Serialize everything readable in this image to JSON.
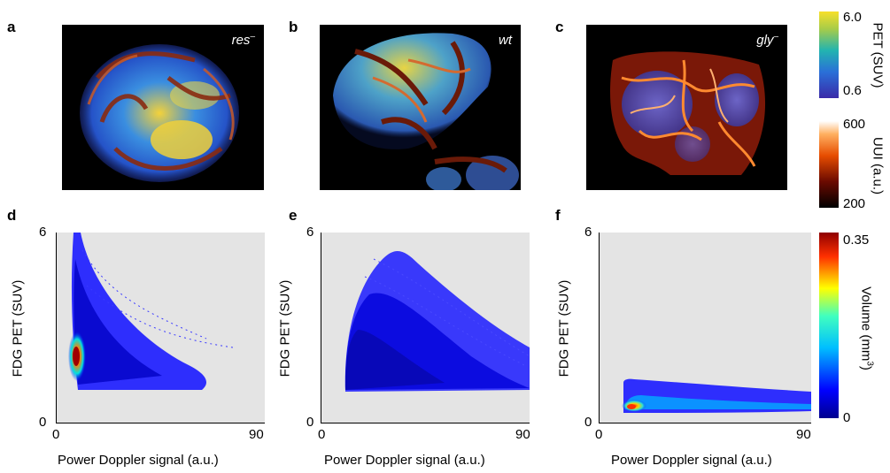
{
  "panels": {
    "a": {
      "letter": "a",
      "tag_main": "res",
      "tag_sup": "–"
    },
    "b": {
      "letter": "b",
      "tag_main": "wt",
      "tag_sup": ""
    },
    "c": {
      "letter": "c",
      "tag_main": "gly",
      "tag_sup": "–"
    },
    "d": {
      "letter": "d"
    },
    "e": {
      "letter": "e"
    },
    "f": {
      "letter": "f"
    }
  },
  "colorbars": {
    "pet": {
      "label": "PET (SUV)",
      "max": "6.0",
      "min": "0.6"
    },
    "uui": {
      "label": "UUI (a.u.)",
      "max": "600",
      "min": "200"
    },
    "volume": {
      "label_main": "Volume (mm",
      "label_sup": "3",
      "label_end": ")",
      "max": "0.35",
      "min": "0"
    }
  },
  "axes": {
    "xlabel": "Power Doppler signal (a.u.)",
    "ylabel": "FDG PET (SUV)",
    "x_min": "0",
    "x_max": "90",
    "y_min": "0",
    "y_max": "6"
  },
  "chart_data": [
    {
      "type": "heatmap",
      "panel": "d",
      "xlabel": "Power Doppler signal (a.u.)",
      "ylabel": "FDG PET (SUV)",
      "xlim": [
        0,
        90
      ],
      "ylim": [
        0,
        6
      ],
      "colorbar": [
        0,
        0.35
      ],
      "hotspot": {
        "x": 8,
        "y": 2.1
      },
      "extent": {
        "x": [
          7,
          50
        ],
        "y": [
          1.6,
          6
        ]
      }
    },
    {
      "type": "heatmap",
      "panel": "e",
      "xlabel": "Power Doppler signal (a.u.)",
      "ylabel": "FDG PET (SUV)",
      "xlim": [
        0,
        90
      ],
      "ylim": [
        0,
        6
      ],
      "colorbar": [
        0,
        0.35
      ],
      "hotspot": {
        "x": 12,
        "y": 2.2
      },
      "extent": {
        "x": [
          10,
          90
        ],
        "y": [
          1.6,
          5.4
        ]
      }
    },
    {
      "type": "heatmap",
      "panel": "f",
      "xlabel": "Power Doppler signal (a.u.)",
      "ylabel": "FDG PET (SUV)",
      "xlim": [
        0,
        90
      ],
      "ylim": [
        0,
        6
      ],
      "colorbar": [
        0,
        0.35
      ],
      "hotspot": {
        "x": 12,
        "y": 0.5
      },
      "extent": {
        "x": [
          10,
          90
        ],
        "y": [
          0.3,
          1.3
        ]
      }
    }
  ]
}
